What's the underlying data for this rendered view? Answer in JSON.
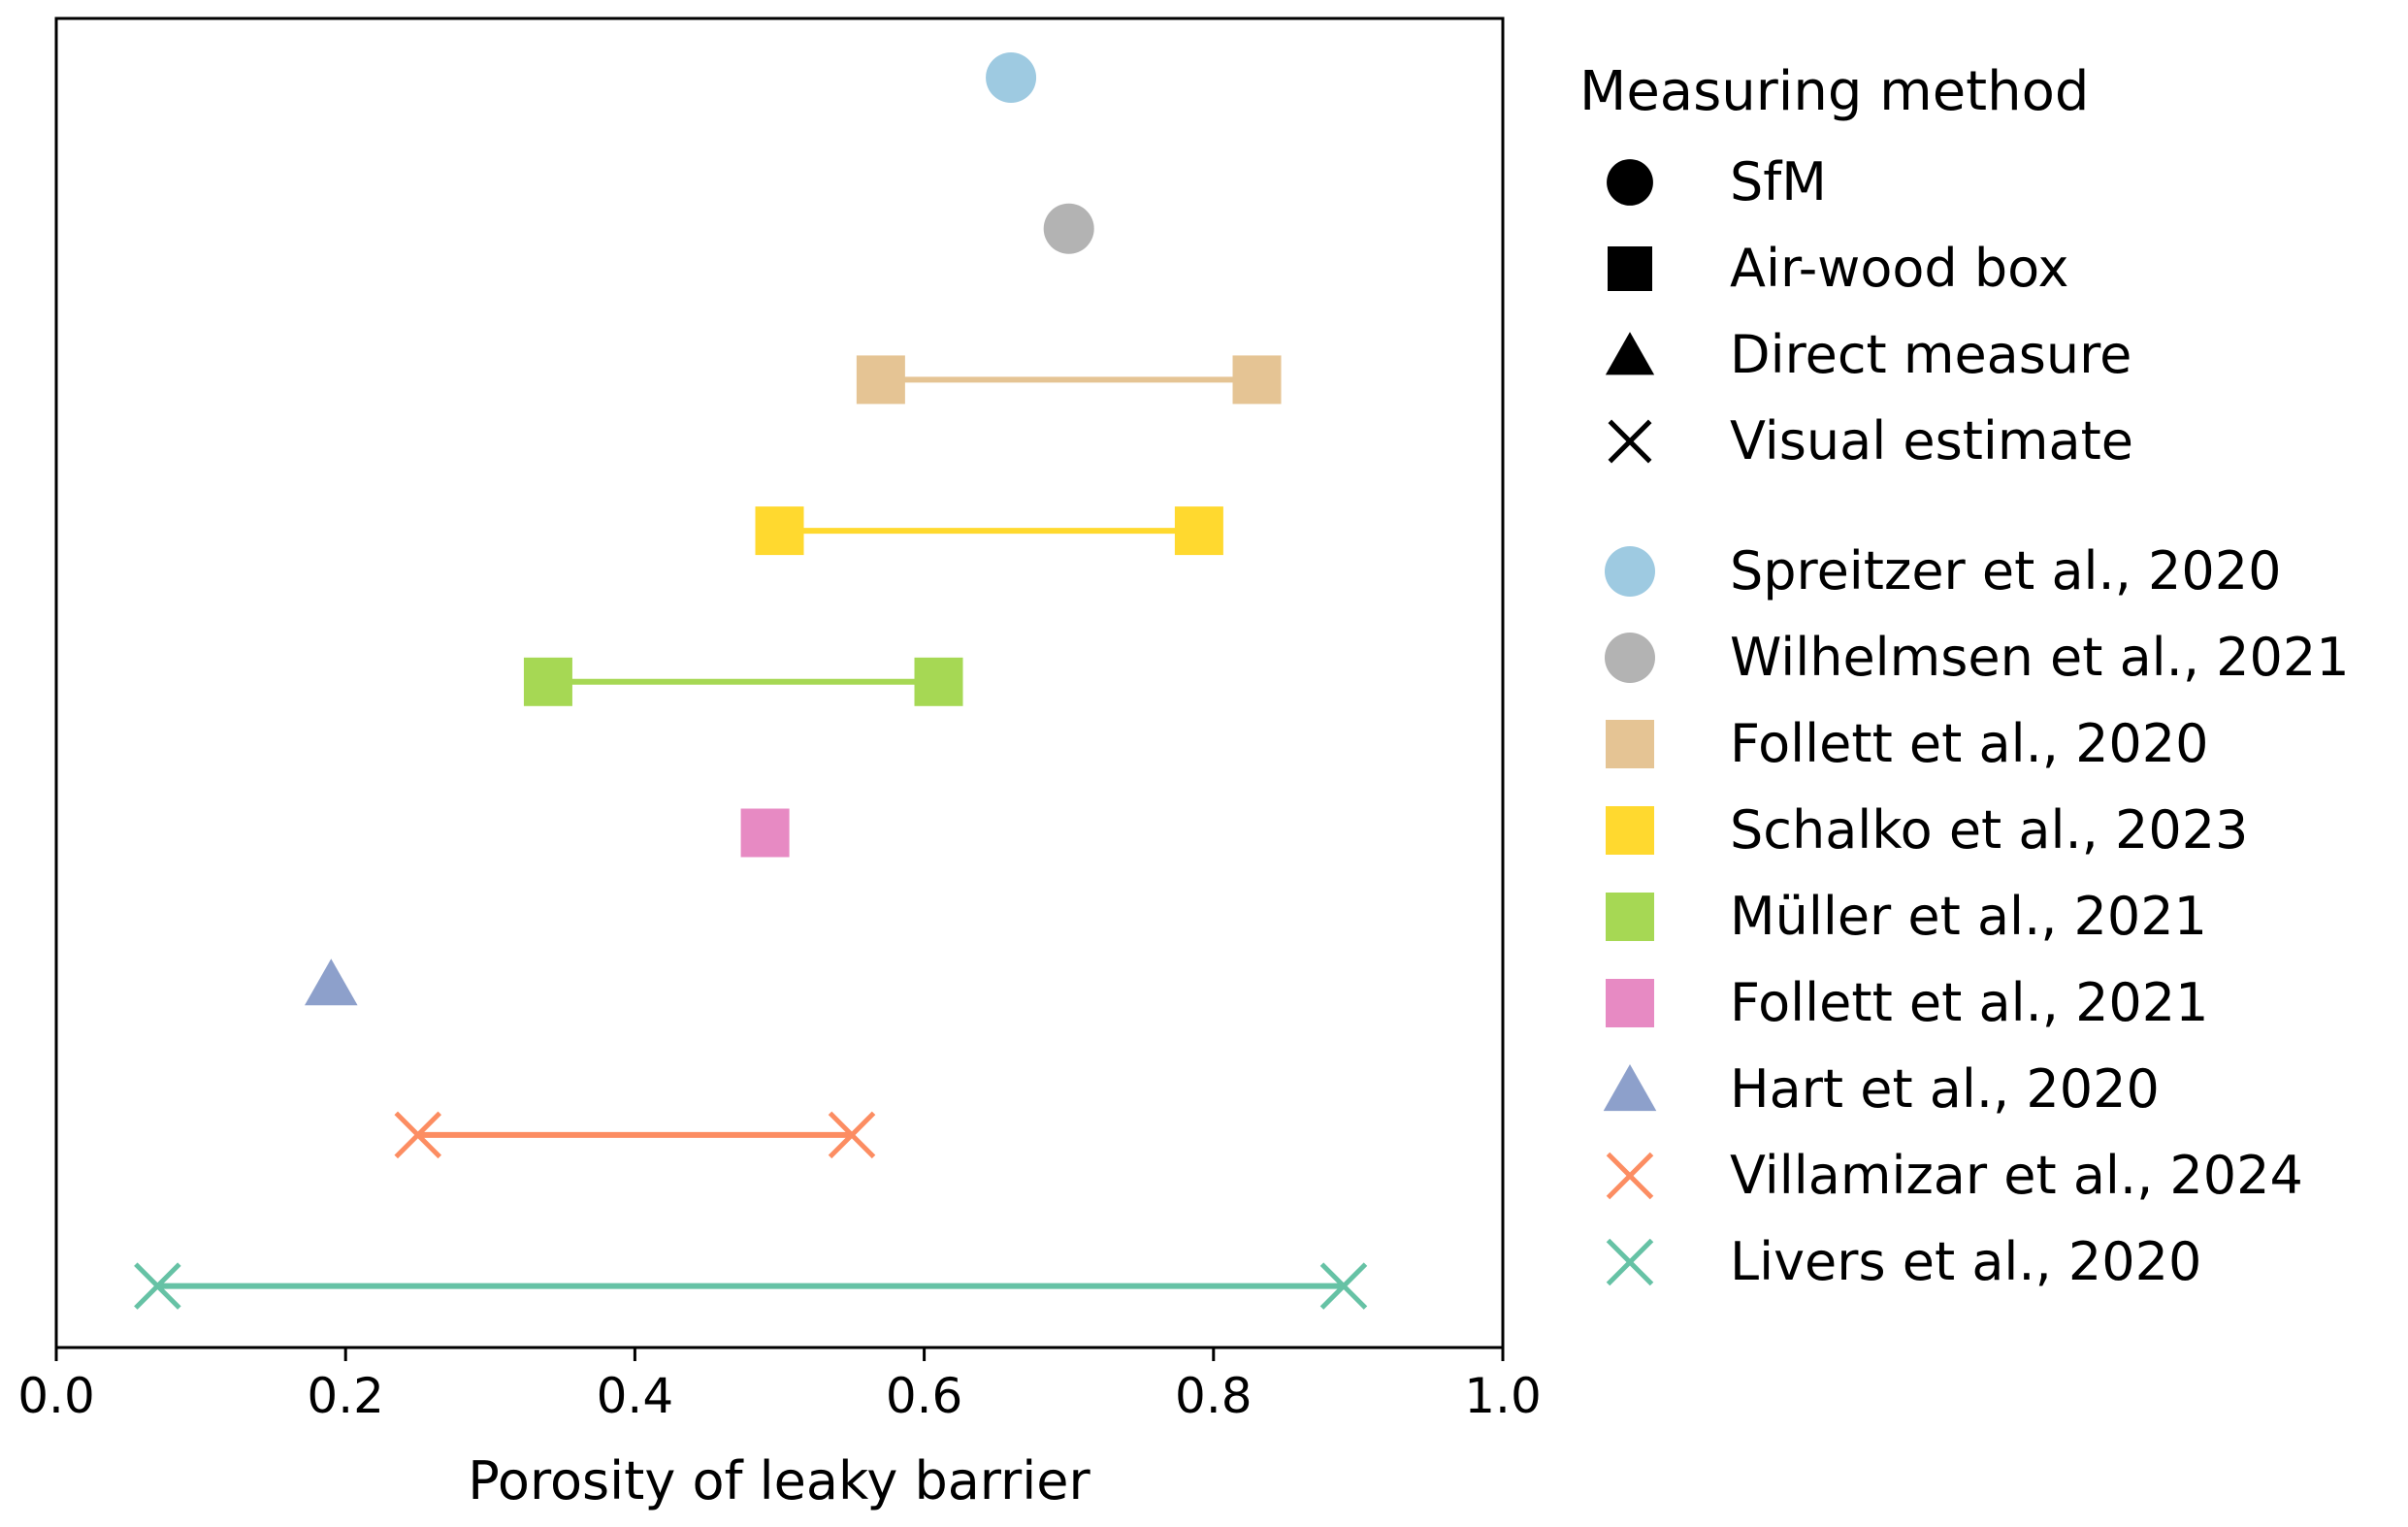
{
  "chart_data": {
    "type": "scatter",
    "title": "",
    "xlabel": "Porosity of leaky barrier",
    "ylabel": "",
    "xlim": [
      0.0,
      1.0
    ],
    "xticks": [
      "0.0",
      "0.2",
      "0.4",
      "0.6",
      "0.8",
      "1.0"
    ],
    "xtick_values": [
      0.0,
      0.2,
      0.4,
      0.6,
      0.8,
      1.0
    ],
    "legend_title": "Measuring method",
    "methods": [
      {
        "label": "SfM",
        "marker": "circle"
      },
      {
        "label": "Air-wood box",
        "marker": "square"
      },
      {
        "label": "Direct measure",
        "marker": "triangle"
      },
      {
        "label": "Visual estimate",
        "marker": "x"
      }
    ],
    "series": [
      {
        "name": "Spreitzer et al., 2020",
        "marker": "circle",
        "color": "#9ecae1",
        "x": [
          0.66
        ]
      },
      {
        "name": "Wilhelmsen et al., 2021",
        "marker": "circle",
        "color": "#b3b3b3",
        "x": [
          0.7
        ]
      },
      {
        "name": "Follett et al., 2020",
        "marker": "square",
        "color": "#e5c494",
        "x": [
          0.57,
          0.83
        ]
      },
      {
        "name": "Schalko et al., 2023",
        "marker": "square",
        "color": "#ffd92f",
        "x": [
          0.5,
          0.79
        ]
      },
      {
        "name": "Müller et al., 2021",
        "marker": "square",
        "color": "#a6d854",
        "x": [
          0.34,
          0.61
        ]
      },
      {
        "name": "Follett et al., 2021",
        "marker": "square",
        "color": "#e78ac3",
        "x": [
          0.49
        ]
      },
      {
        "name": "Hart et al., 2020",
        "marker": "triangle",
        "color": "#8da0cb",
        "x": [
          0.19
        ]
      },
      {
        "name": "Villamizar et al., 2024",
        "marker": "x",
        "color": "#fc8d62",
        "x": [
          0.25,
          0.55
        ]
      },
      {
        "name": "Livers et al., 2020",
        "marker": "x",
        "color": "#66c2a5",
        "x": [
          0.07,
          0.89
        ]
      }
    ]
  }
}
